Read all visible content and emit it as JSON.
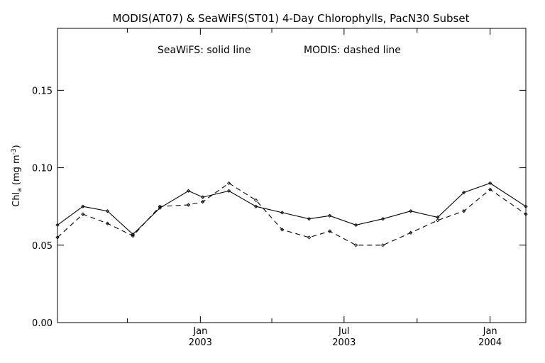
{
  "chart_data": {
    "type": "line",
    "title": "MODIS(AT07) & SeaWiFS(ST01) 4-Day Chlorophylls, PacN30 Subset",
    "annotation": {
      "seawifs": "SeaWiFS: solid line",
      "modis": "MODIS: dashed line"
    },
    "ylabel": {
      "main": "Chl",
      "sub": "a",
      "units_prefix": " (mg m",
      "units_exp": "-3",
      "units_suffix": ")"
    },
    "xlim": [
      "2002-07-05",
      "2004-02-15"
    ],
    "ylim": [
      0,
      0.19
    ],
    "grid": false,
    "y_ticks": [
      {
        "value": 0.0,
        "label": "0.00"
      },
      {
        "value": 0.05,
        "label": "0.05"
      },
      {
        "value": 0.1,
        "label": "0.10"
      },
      {
        "value": 0.15,
        "label": "0.15"
      }
    ],
    "x_major_ticks": [
      {
        "date": "2003-01-01",
        "label_top": "Jan",
        "label_bottom": "2003"
      },
      {
        "date": "2003-07-01",
        "label_top": "Jul",
        "label_bottom": "2003"
      },
      {
        "date": "2004-01-01",
        "label_top": "Jan",
        "label_bottom": "2004"
      }
    ],
    "x_minor_ticks": [
      "2002-10-01",
      "2003-04-01",
      "2003-10-01"
    ],
    "series": [
      {
        "name": "SeaWiFS",
        "style": "solid",
        "points": [
          {
            "x": "2002-07-05",
            "y": 0.063
          },
          {
            "x": "2002-08-06",
            "y": 0.075
          },
          {
            "x": "2002-09-06",
            "y": 0.072
          },
          {
            "x": "2002-10-08",
            "y": 0.057
          },
          {
            "x": "2002-11-11",
            "y": 0.074
          },
          {
            "x": "2002-12-17",
            "y": 0.085
          },
          {
            "x": "2003-01-04",
            "y": 0.081
          },
          {
            "x": "2003-02-06",
            "y": 0.085
          },
          {
            "x": "2003-03-12",
            "y": 0.075
          },
          {
            "x": "2003-04-14",
            "y": 0.071
          },
          {
            "x": "2003-05-18",
            "y": 0.067
          },
          {
            "x": "2003-06-13",
            "y": 0.069
          },
          {
            "x": "2003-07-16",
            "y": 0.063
          },
          {
            "x": "2003-08-19",
            "y": 0.067
          },
          {
            "x": "2003-09-23",
            "y": 0.072
          },
          {
            "x": "2003-10-27",
            "y": 0.068
          },
          {
            "x": "2003-11-29",
            "y": 0.084
          },
          {
            "x": "2004-01-01",
            "y": 0.09
          },
          {
            "x": "2004-02-15",
            "y": 0.075
          }
        ]
      },
      {
        "name": "MODIS",
        "style": "dashed",
        "points": [
          {
            "x": "2002-07-05",
            "y": 0.055
          },
          {
            "x": "2002-08-06",
            "y": 0.07
          },
          {
            "x": "2002-09-06",
            "y": 0.064
          },
          {
            "x": "2002-10-08",
            "y": 0.056
          },
          {
            "x": "2002-11-11",
            "y": 0.075
          },
          {
            "x": "2002-12-17",
            "y": 0.076
          },
          {
            "x": "2003-01-04",
            "y": 0.078
          },
          {
            "x": "2003-02-06",
            "y": 0.09
          },
          {
            "x": "2003-03-12",
            "y": 0.079
          },
          {
            "x": "2003-04-14",
            "y": 0.06
          },
          {
            "x": "2003-05-18",
            "y": 0.055
          },
          {
            "x": "2003-06-13",
            "y": 0.059
          },
          {
            "x": "2003-07-16",
            "y": 0.05
          },
          {
            "x": "2003-08-19",
            "y": 0.05
          },
          {
            "x": "2003-09-23",
            "y": 0.058
          },
          {
            "x": "2003-10-27",
            "y": 0.066
          },
          {
            "x": "2003-11-29",
            "y": 0.072
          },
          {
            "x": "2004-01-01",
            "y": 0.086
          },
          {
            "x": "2004-02-15",
            "y": 0.07
          }
        ]
      }
    ]
  }
}
